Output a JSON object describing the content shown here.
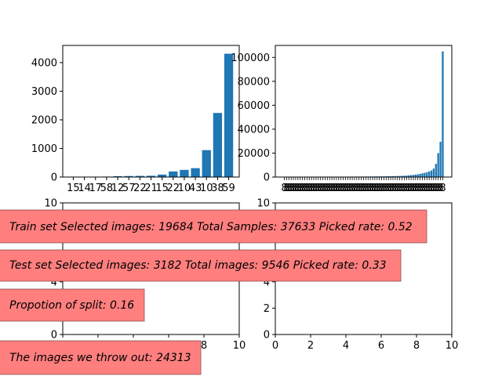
{
  "chart_data": [
    {
      "type": "bar",
      "categories": [
        "15",
        "14",
        "17",
        "58",
        "12",
        "57",
        "22",
        "21",
        "15",
        "22",
        "10",
        "43",
        "10",
        "38",
        "59"
      ],
      "values": [
        3,
        8,
        10,
        15,
        30,
        35,
        40,
        45,
        85,
        195,
        250,
        310,
        940,
        2240,
        4310
      ],
      "ylim": [
        0,
        4600
      ],
      "yticks": [
        0,
        1000,
        2000,
        3000,
        4000
      ],
      "color": "#1f77b4"
    },
    {
      "type": "bar",
      "values": [
        50,
        60,
        70,
        80,
        90,
        100,
        110,
        120,
        130,
        140,
        150,
        160,
        170,
        180,
        190,
        200,
        210,
        220,
        230,
        240,
        250,
        260,
        270,
        280,
        290,
        300,
        310,
        320,
        330,
        340,
        350,
        360,
        370,
        380,
        390,
        400,
        420,
        440,
        460,
        480,
        500,
        520,
        540,
        560,
        580,
        600,
        650,
        700,
        750,
        800,
        850,
        900,
        1000,
        1100,
        1200,
        1400,
        1600,
        1800,
        2000,
        2300,
        2700,
        3100,
        3500,
        4000,
        4700,
        5500,
        7000,
        11000,
        20000,
        29500,
        105000
      ],
      "tick_label": "8",
      "ylim": [
        0,
        110000
      ],
      "yticks": [
        0,
        20000,
        40000,
        60000,
        80000,
        100000
      ],
      "color": "#1f77b4"
    },
    {
      "type": "scatter",
      "xlim": [
        0,
        10
      ],
      "ylim": [
        0,
        10
      ],
      "xticks": [
        0,
        2,
        4,
        6,
        8,
        10
      ],
      "yticks": [
        0,
        2,
        4,
        6,
        8,
        10
      ]
    },
    {
      "type": "scatter",
      "xlim": [
        0,
        10
      ],
      "ylim": [
        0,
        10
      ],
      "xticks": [
        0,
        2,
        4,
        6,
        8,
        10
      ],
      "yticks": [
        0,
        2,
        4,
        6,
        8,
        10
      ]
    }
  ],
  "annotations": [
    "Train set Selected images: 19684  Total Samples: 37633  Picked rate: 0.52",
    "Test set Selected images: 3182  Total images: 9546  Picked rate: 0.33",
    "Propotion of split: 0.16",
    "The images we throw out: 24313"
  ],
  "box_color": "#ff7f7f"
}
